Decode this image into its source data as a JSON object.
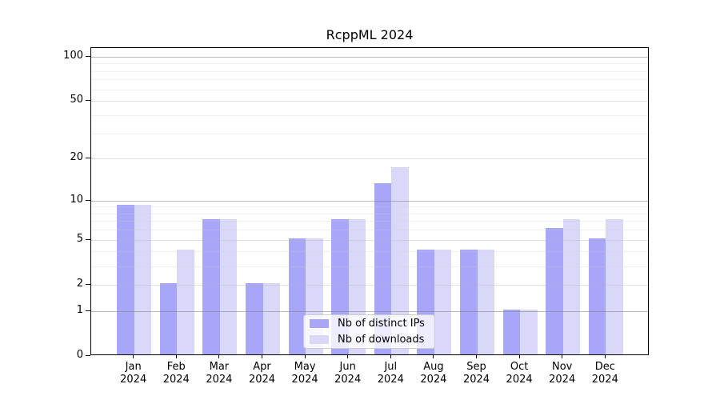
{
  "title": "RcppML 2024",
  "chart_data": {
    "type": "bar",
    "title": "RcppML 2024",
    "categories": [
      "Jan",
      "Feb",
      "Mar",
      "Apr",
      "May",
      "Jun",
      "Jul",
      "Aug",
      "Sep",
      "Oct",
      "Nov",
      "Dec"
    ],
    "category_year_label": "2024",
    "series": [
      {
        "name": "Nb of distinct IPs",
        "color": "#a8a6f8",
        "values": [
          9,
          2,
          7,
          2,
          5,
          7,
          13,
          4,
          4,
          1,
          6,
          5
        ]
      },
      {
        "name": "Nb of downloads",
        "color": "#dad8f9",
        "values": [
          9,
          4,
          7,
          2,
          5,
          7,
          17,
          4,
          4,
          1,
          7,
          7
        ]
      }
    ],
    "yscale": "log1p",
    "ylim": [
      0,
      110
    ],
    "yticks": [
      0,
      1,
      2,
      5,
      10,
      20,
      50,
      100
    ],
    "major_decade_gridlines": [
      1,
      10,
      100
    ],
    "labeled_sub_gridlines": [
      2,
      5,
      20,
      50
    ],
    "minor_gridlines": [
      3,
      4,
      6,
      7,
      8,
      9,
      30,
      40,
      60,
      70,
      80,
      90
    ],
    "grid": "on",
    "legend_position": "lower-center",
    "xlabel": "",
    "ylabel": ""
  },
  "colors": {
    "background": "#ffffff",
    "spine": "#000000",
    "text": "#000000",
    "major_gridline": "#b4b4b4",
    "sub_gridline": "#e2e2e2",
    "minor_gridline": "#ededed",
    "legend_border": "#cccccc"
  }
}
